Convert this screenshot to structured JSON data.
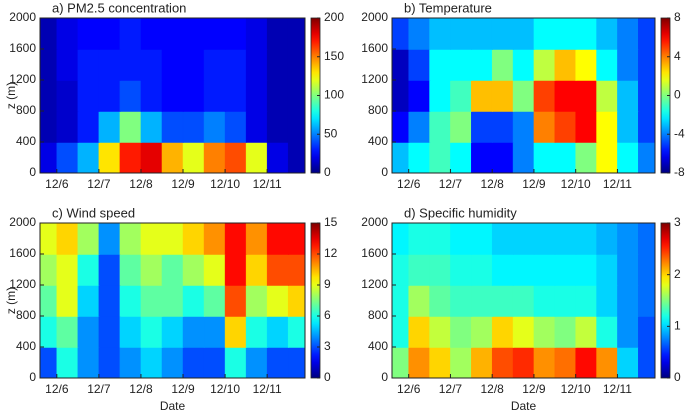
{
  "chart_data": [
    {
      "type": "heatmap",
      "title": "a) PM2.5 concentration",
      "ylabel": "z (m)",
      "colormap": "jet",
      "x": [
        5.75,
        6.25,
        6.75,
        7.25,
        7.75,
        8.25,
        8.75,
        9.25,
        9.75,
        10.25,
        10.75,
        11.25,
        11.75
      ],
      "y": [
        200,
        600,
        1000,
        1400,
        1800
      ],
      "z": [
        [
          20,
          40,
          60,
          130,
          170,
          180,
          140,
          120,
          150,
          160,
          120,
          20,
          10
        ],
        [
          10,
          15,
          30,
          60,
          100,
          60,
          40,
          40,
          50,
          40,
          20,
          10,
          10
        ],
        [
          10,
          15,
          30,
          30,
          40,
          30,
          25,
          25,
          30,
          30,
          20,
          10,
          10
        ],
        [
          10,
          20,
          30,
          30,
          30,
          30,
          25,
          25,
          30,
          30,
          20,
          10,
          10
        ],
        [
          10,
          20,
          25,
          25,
          30,
          25,
          25,
          25,
          25,
          25,
          20,
          10,
          10
        ]
      ],
      "xlim": [
        5.6,
        11.9
      ],
      "ylim": [
        0,
        2000
      ],
      "xticks": [
        {
          "value": 6,
          "label": "12/6"
        },
        {
          "value": 7,
          "label": "12/7"
        },
        {
          "value": 8,
          "label": "12/8"
        },
        {
          "value": 9,
          "label": "12/9"
        },
        {
          "value": 10,
          "label": "12/10"
        },
        {
          "value": 11,
          "label": "12/11"
        }
      ],
      "yticks": [
        0,
        400,
        800,
        1200,
        1600,
        2000
      ],
      "zlim": [
        0,
        200
      ],
      "zticks": [
        0,
        50,
        100,
        150,
        200
      ]
    },
    {
      "type": "heatmap",
      "title": "b) Temperature",
      "colormap": "jet",
      "x": [
        5.75,
        6.25,
        6.75,
        7.25,
        7.75,
        8.25,
        8.75,
        9.25,
        9.75,
        10.25,
        10.75,
        11.25,
        11.75
      ],
      "y": [
        200,
        600,
        1000,
        1400,
        1800
      ],
      "z": [
        [
          -3,
          -2,
          -1,
          -2,
          -6,
          -6,
          -4,
          -2,
          -2,
          0,
          2,
          -2,
          -4
        ],
        [
          -6,
          -4,
          -1,
          0,
          -5,
          -5,
          -4,
          4,
          5,
          6,
          2,
          -3,
          -5
        ],
        [
          -7,
          -6,
          -2,
          -1,
          3,
          3,
          0,
          5,
          6,
          6,
          1,
          -3,
          -5
        ],
        [
          -7,
          -5,
          -2,
          -2,
          -2,
          0,
          -2,
          1,
          3,
          2,
          -2,
          -4,
          -5
        ],
        [
          -5,
          -4,
          -3,
          -3,
          -3,
          -3,
          -3,
          -2,
          -2,
          -2,
          -3,
          -4,
          -5
        ]
      ],
      "xlim": [
        5.6,
        11.9
      ],
      "ylim": [
        0,
        2000
      ],
      "xticks": [
        {
          "value": 6,
          "label": "12/6"
        },
        {
          "value": 7,
          "label": "12/7"
        },
        {
          "value": 8,
          "label": "12/8"
        },
        {
          "value": 9,
          "label": "12/9"
        },
        {
          "value": 10,
          "label": "12/10"
        },
        {
          "value": 11,
          "label": "12/11"
        }
      ],
      "yticks": [
        0,
        400,
        800,
        1200,
        1600,
        2000
      ],
      "zlim": [
        -8,
        8
      ],
      "zticks": [
        -8,
        -4,
        0,
        4,
        8
      ]
    },
    {
      "type": "heatmap",
      "title": "c) Wind speed",
      "ylabel": "z (m)",
      "xlabel": "Date",
      "colormap": "jet",
      "x": [
        5.75,
        6.25,
        6.75,
        7.25,
        7.75,
        8.25,
        8.75,
        9.25,
        9.75,
        10.25,
        10.75,
        11.25,
        11.75
      ],
      "y": [
        200,
        600,
        1000,
        1400,
        1800
      ],
      "z": [
        [
          3,
          6,
          4,
          3,
          4,
          5,
          4,
          3,
          3,
          6,
          4,
          3,
          3
        ],
        [
          6,
          7,
          4,
          3,
          5,
          6,
          5,
          4,
          4,
          10,
          6,
          5,
          6
        ],
        [
          7,
          9,
          5,
          3,
          6,
          7,
          7,
          6,
          7,
          12,
          8,
          9,
          10
        ],
        [
          8,
          9,
          6,
          3,
          7,
          8,
          7,
          8,
          9,
          13,
          10,
          12,
          12
        ],
        [
          9,
          10,
          8,
          4,
          8,
          9,
          9,
          10,
          11,
          13,
          11,
          13,
          13
        ]
      ],
      "xlim": [
        5.6,
        11.9
      ],
      "ylim": [
        0,
        2000
      ],
      "xticks": [
        {
          "value": 6,
          "label": "12/6"
        },
        {
          "value": 7,
          "label": "12/7"
        },
        {
          "value": 8,
          "label": "12/8"
        },
        {
          "value": 9,
          "label": "12/9"
        },
        {
          "value": 10,
          "label": "12/10"
        },
        {
          "value": 11,
          "label": "12/11"
        }
      ],
      "yticks": [
        0,
        400,
        800,
        1200,
        1600,
        2000
      ],
      "zlim": [
        0,
        15
      ],
      "zticks": [
        0,
        3,
        6,
        9,
        12,
        15
      ]
    },
    {
      "type": "heatmap",
      "title": "d) Specific humidity",
      "xlabel": "Date",
      "colormap": "jet",
      "x": [
        5.75,
        6.25,
        6.75,
        7.25,
        7.75,
        8.25,
        8.75,
        9.25,
        9.75,
        10.25,
        10.75,
        11.25,
        11.75
      ],
      "y": [
        200,
        600,
        1000,
        1400,
        1800
      ],
      "z": [
        [
          1.5,
          2.2,
          2.0,
          1.6,
          2.1,
          2.4,
          2.5,
          2.2,
          2.3,
          2.6,
          2.2,
          1.0,
          0.6
        ],
        [
          1.2,
          2.0,
          1.7,
          1.5,
          1.6,
          2.0,
          1.8,
          1.6,
          1.5,
          1.7,
          1.2,
          0.8,
          0.6
        ],
        [
          1.2,
          1.6,
          1.4,
          1.3,
          1.3,
          1.3,
          1.3,
          1.2,
          1.2,
          1.2,
          1.0,
          0.8,
          0.7
        ],
        [
          1.2,
          1.3,
          1.3,
          1.2,
          1.2,
          1.1,
          1.1,
          1.1,
          1.1,
          1.1,
          1.0,
          0.8,
          0.7
        ],
        [
          1.1,
          1.2,
          1.2,
          1.1,
          1.1,
          1.0,
          1.0,
          1.0,
          1.0,
          1.0,
          0.9,
          0.8,
          0.7
        ]
      ],
      "xlim": [
        5.6,
        11.9
      ],
      "ylim": [
        0,
        2000
      ],
      "xticks": [
        {
          "value": 6,
          "label": "12/6"
        },
        {
          "value": 7,
          "label": "12/7"
        },
        {
          "value": 8,
          "label": "12/8"
        },
        {
          "value": 9,
          "label": "12/9"
        },
        {
          "value": 10,
          "label": "12/10"
        },
        {
          "value": 11,
          "label": "12/11"
        }
      ],
      "yticks": [
        0,
        400,
        800,
        1200,
        1600,
        2000
      ],
      "zlim": [
        0,
        3
      ],
      "zticks": [
        0,
        1,
        2,
        3
      ]
    }
  ]
}
